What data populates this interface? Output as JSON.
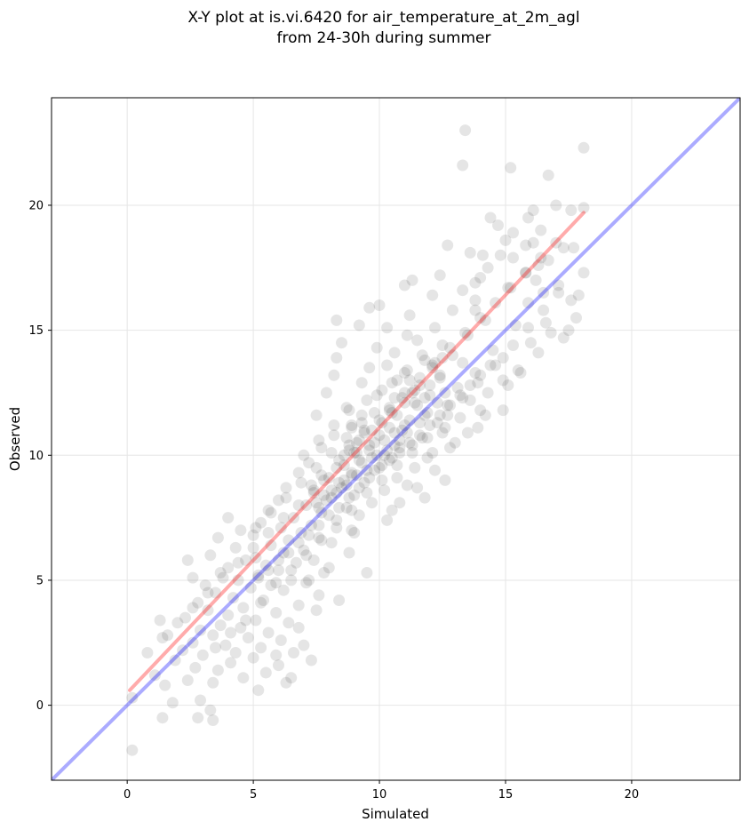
{
  "chart_data": {
    "type": "scatter",
    "title_line1": "X-Y plot at is.vi.6420 for air_temperature_at_2m_agl",
    "title_line2": "from 24-30h during summer",
    "xlabel": "Simulated",
    "ylabel": "Observed",
    "xlim": [
      -3.0,
      24.3
    ],
    "ylim": [
      -3.0,
      24.3
    ],
    "xticks": [
      0,
      5,
      10,
      15,
      20
    ],
    "yticks": [
      0,
      5,
      10,
      15,
      20
    ],
    "grid": true,
    "point_color": "#000000",
    "point_alpha": 0.1,
    "reference_line": {
      "name": "1:1",
      "color": "#0000ff",
      "x": [
        -3.0,
        24.3
      ],
      "y": [
        -3.0,
        24.3
      ]
    },
    "fit_line": {
      "color": "#ff0000",
      "x": [
        0.1,
        18.1
      ],
      "y": [
        0.6,
        19.7
      ]
    },
    "points": [
      [
        13.4,
        23.0
      ],
      [
        18.1,
        22.3
      ],
      [
        13.3,
        21.6
      ],
      [
        15.2,
        21.5
      ],
      [
        16.7,
        21.2
      ],
      [
        17.0,
        20.0
      ],
      [
        18.1,
        19.9
      ],
      [
        17.6,
        19.8
      ],
      [
        16.1,
        19.8
      ],
      [
        14.4,
        19.5
      ],
      [
        15.9,
        19.5
      ],
      [
        14.7,
        19.2
      ],
      [
        16.4,
        19.0
      ],
      [
        15.3,
        18.9
      ],
      [
        15.0,
        18.6
      ],
      [
        16.1,
        18.5
      ],
      [
        15.8,
        18.4
      ],
      [
        17.3,
        18.3
      ],
      [
        12.7,
        18.4
      ],
      [
        14.1,
        18.0
      ],
      [
        14.8,
        18.0
      ],
      [
        13.6,
        18.1
      ],
      [
        17.7,
        18.3
      ],
      [
        15.3,
        17.9
      ],
      [
        16.7,
        17.8
      ],
      [
        16.3,
        17.6
      ],
      [
        14.3,
        17.5
      ],
      [
        15.8,
        17.3
      ],
      [
        18.1,
        17.3
      ],
      [
        14.0,
        17.1
      ],
      [
        12.4,
        17.2
      ],
      [
        11.3,
        17.0
      ],
      [
        16.2,
        17.0
      ],
      [
        17.1,
        16.8
      ],
      [
        13.8,
        16.9
      ],
      [
        15.1,
        16.7
      ],
      [
        16.5,
        16.5
      ],
      [
        11.0,
        16.8
      ],
      [
        13.3,
        16.6
      ],
      [
        12.1,
        16.4
      ],
      [
        13.8,
        16.2
      ],
      [
        15.9,
        16.1
      ],
      [
        17.6,
        16.2
      ],
      [
        10.0,
        16.0
      ],
      [
        9.6,
        15.9
      ],
      [
        12.9,
        15.8
      ],
      [
        13.8,
        15.8
      ],
      [
        11.2,
        15.6
      ],
      [
        17.8,
        15.5
      ],
      [
        14.2,
        15.4
      ],
      [
        8.3,
        15.4
      ],
      [
        16.6,
        15.3
      ],
      [
        9.2,
        15.2
      ],
      [
        15.4,
        15.2
      ],
      [
        10.3,
        15.1
      ],
      [
        12.2,
        15.1
      ],
      [
        11.1,
        14.8
      ],
      [
        13.5,
        14.8
      ],
      [
        17.3,
        14.7
      ],
      [
        8.5,
        14.5
      ],
      [
        16.0,
        14.5
      ],
      [
        11.5,
        14.6
      ],
      [
        12.5,
        14.4
      ],
      [
        9.9,
        14.3
      ],
      [
        14.5,
        14.2
      ],
      [
        10.6,
        14.1
      ],
      [
        12.9,
        14.0
      ],
      [
        8.3,
        13.9
      ],
      [
        14.9,
        13.9
      ],
      [
        11.8,
        13.8
      ],
      [
        13.3,
        13.7
      ],
      [
        10.3,
        13.6
      ],
      [
        12.1,
        13.6
      ],
      [
        9.6,
        13.5
      ],
      [
        15.5,
        13.4
      ],
      [
        11.0,
        13.3
      ],
      [
        13.8,
        13.3
      ],
      [
        8.2,
        13.2
      ],
      [
        12.4,
        13.1
      ],
      [
        10.7,
        13.0
      ],
      [
        14.9,
        13.0
      ],
      [
        9.3,
        12.9
      ],
      [
        11.6,
        12.8
      ],
      [
        13.1,
        12.7
      ],
      [
        10.1,
        12.6
      ],
      [
        7.9,
        12.5
      ],
      [
        14.3,
        12.5
      ],
      [
        12.0,
        12.4
      ],
      [
        10.9,
        12.3
      ],
      [
        9.5,
        12.2
      ],
      [
        13.6,
        12.2
      ],
      [
        11.4,
        12.1
      ],
      [
        12.7,
        12.0
      ],
      [
        8.7,
        11.9
      ],
      [
        10.4,
        11.8
      ],
      [
        14.0,
        11.8
      ],
      [
        9.8,
        11.7
      ],
      [
        11.8,
        11.6
      ],
      [
        7.5,
        11.6
      ],
      [
        13.2,
        11.5
      ],
      [
        10.0,
        11.4
      ],
      [
        12.3,
        11.3
      ],
      [
        8.9,
        11.2
      ],
      [
        11.0,
        11.2
      ],
      [
        13.9,
        11.1
      ],
      [
        9.4,
        11.0
      ],
      [
        10.6,
        10.9
      ],
      [
        12.5,
        10.9
      ],
      [
        8.2,
        10.8
      ],
      [
        11.7,
        10.7
      ],
      [
        10.2,
        10.6
      ],
      [
        9.1,
        10.5
      ],
      [
        13.0,
        10.5
      ],
      [
        11.3,
        10.4
      ],
      [
        7.7,
        10.3
      ],
      [
        10.8,
        10.3
      ],
      [
        9.6,
        10.2
      ],
      [
        12.1,
        10.1
      ],
      [
        8.6,
        10.0
      ],
      [
        10.5,
        9.9
      ],
      [
        11.9,
        9.9
      ],
      [
        9.2,
        9.8
      ],
      [
        7.2,
        9.7
      ],
      [
        10.1,
        9.6
      ],
      [
        8.3,
        9.5
      ],
      [
        11.4,
        9.5
      ],
      [
        9.8,
        9.4
      ],
      [
        6.8,
        9.3
      ],
      [
        8.9,
        9.2
      ],
      [
        10.7,
        9.1
      ],
      [
        12.6,
        9.0
      ],
      [
        7.8,
        9.0
      ],
      [
        9.4,
        8.9
      ],
      [
        11.1,
        8.8
      ],
      [
        8.5,
        8.7
      ],
      [
        6.3,
        8.7
      ],
      [
        10.2,
        8.6
      ],
      [
        7.4,
        8.5
      ],
      [
        9.0,
        8.4
      ],
      [
        11.8,
        8.3
      ],
      [
        8.1,
        8.3
      ],
      [
        6.0,
        8.2
      ],
      [
        9.7,
        8.1
      ],
      [
        7.1,
        8.0
      ],
      [
        8.7,
        7.9
      ],
      [
        10.5,
        7.8
      ],
      [
        5.6,
        7.8
      ],
      [
        7.7,
        7.7
      ],
      [
        9.2,
        7.6
      ],
      [
        6.6,
        7.5
      ],
      [
        8.3,
        7.4
      ],
      [
        4.0,
        7.5
      ],
      [
        5.3,
        7.3
      ],
      [
        7.3,
        7.2
      ],
      [
        6.1,
        7.1
      ],
      [
        8.9,
        7.0
      ],
      [
        4.5,
        7.0
      ],
      [
        6.9,
        6.9
      ],
      [
        5.0,
        6.8
      ],
      [
        7.6,
        6.7
      ],
      [
        3.6,
        6.7
      ],
      [
        6.4,
        6.6
      ],
      [
        8.1,
        6.5
      ],
      [
        5.7,
        6.4
      ],
      [
        4.3,
        6.3
      ],
      [
        7.0,
        6.2
      ],
      [
        6.2,
        6.1
      ],
      [
        3.3,
        6.0
      ],
      [
        5.1,
        5.9
      ],
      [
        7.4,
        5.8
      ],
      [
        4.7,
        5.8
      ],
      [
        6.7,
        5.7
      ],
      [
        2.4,
        5.8
      ],
      [
        5.5,
        5.6
      ],
      [
        4.0,
        5.5
      ],
      [
        6.0,
        5.4
      ],
      [
        7.8,
        5.3
      ],
      [
        3.7,
        5.3
      ],
      [
        5.2,
        5.2
      ],
      [
        2.6,
        5.1
      ],
      [
        6.5,
        5.0
      ],
      [
        4.4,
        5.0
      ],
      [
        7.1,
        4.9
      ],
      [
        3.1,
        4.8
      ],
      [
        5.7,
        4.8
      ],
      [
        4.9,
        4.7
      ],
      [
        6.2,
        4.6
      ],
      [
        3.5,
        4.5
      ],
      [
        7.6,
        4.4
      ],
      [
        4.2,
        4.3
      ],
      [
        5.4,
        4.2
      ],
      [
        2.8,
        4.1
      ],
      [
        6.8,
        4.0
      ],
      [
        4.6,
        3.9
      ],
      [
        3.2,
        3.8
      ],
      [
        5.9,
        3.7
      ],
      [
        4.0,
        3.6
      ],
      [
        2.3,
        3.5
      ],
      [
        5.1,
        3.4
      ],
      [
        6.4,
        3.3
      ],
      [
        3.7,
        3.2
      ],
      [
        1.3,
        3.4
      ],
      [
        4.5,
        3.1
      ],
      [
        2.9,
        3.0
      ],
      [
        5.6,
        2.9
      ],
      [
        3.4,
        2.8
      ],
      [
        1.6,
        2.8
      ],
      [
        4.8,
        2.7
      ],
      [
        6.1,
        2.6
      ],
      [
        2.6,
        2.5
      ],
      [
        3.9,
        2.4
      ],
      [
        5.3,
        2.3
      ],
      [
        2.2,
        2.2
      ],
      [
        4.3,
        2.1
      ],
      [
        6.6,
        2.1
      ],
      [
        3.0,
        2.0
      ],
      [
        5.0,
        1.9
      ],
      [
        1.9,
        1.8
      ],
      [
        4.1,
        1.7
      ],
      [
        6.0,
        1.6
      ],
      [
        2.7,
        1.5
      ],
      [
        3.6,
        1.4
      ],
      [
        5.5,
        1.3
      ],
      [
        1.1,
        1.2
      ],
      [
        4.6,
        1.1
      ],
      [
        2.4,
        1.0
      ],
      [
        3.4,
        0.9
      ],
      [
        6.3,
        0.9
      ],
      [
        1.5,
        0.8
      ],
      [
        5.2,
        0.6
      ],
      [
        0.2,
        0.3
      ],
      [
        2.9,
        0.2
      ],
      [
        1.8,
        0.1
      ],
      [
        3.3,
        -0.2
      ],
      [
        1.4,
        -0.5
      ],
      [
        2.8,
        -0.5
      ],
      [
        3.4,
        -0.6
      ],
      [
        0.2,
        -1.8
      ],
      [
        6.5,
        1.1
      ],
      [
        7.3,
        1.8
      ],
      [
        5.9,
        2.0
      ],
      [
        7.0,
        2.4
      ],
      [
        6.8,
        3.1
      ],
      [
        7.5,
        3.8
      ],
      [
        8.4,
        4.2
      ],
      [
        7.2,
        5.0
      ],
      [
        8.0,
        5.5
      ],
      [
        8.8,
        6.1
      ],
      [
        9.5,
        5.3
      ],
      [
        9.0,
        6.9
      ],
      [
        10.3,
        7.4
      ],
      [
        10.8,
        8.1
      ],
      [
        11.5,
        8.7
      ],
      [
        12.2,
        9.4
      ],
      [
        12.8,
        10.3
      ],
      [
        13.5,
        10.9
      ],
      [
        14.2,
        11.6
      ],
      [
        14.9,
        11.8
      ],
      [
        15.1,
        12.8
      ],
      [
        15.6,
        13.3
      ],
      [
        16.3,
        14.1
      ],
      [
        16.8,
        14.9
      ],
      [
        17.5,
        15.0
      ],
      [
        17.9,
        16.4
      ],
      [
        12.7,
        11.6
      ],
      [
        13.3,
        12.3
      ],
      [
        13.9,
        12.9
      ],
      [
        14.6,
        13.6
      ],
      [
        15.3,
        14.4
      ],
      [
        15.9,
        15.1
      ],
      [
        16.5,
        15.8
      ],
      [
        17.1,
        16.5
      ],
      [
        11.9,
        10.7
      ],
      [
        12.6,
        11.1
      ],
      [
        11.3,
        10.1
      ],
      [
        10.7,
        9.6
      ],
      [
        10.1,
        9.0
      ],
      [
        9.5,
        8.5
      ],
      [
        8.9,
        7.8
      ],
      [
        8.3,
        7.1
      ],
      [
        7.7,
        6.6
      ],
      [
        7.1,
        6.0
      ],
      [
        6.5,
        5.4
      ],
      [
        5.9,
        4.9
      ],
      [
        5.3,
        4.1
      ],
      [
        4.7,
        3.4
      ],
      [
        4.1,
        2.9
      ],
      [
        3.5,
        2.3
      ],
      [
        9.8,
        10.5
      ],
      [
        9.1,
        10.1
      ],
      [
        8.6,
        9.6
      ],
      [
        8.0,
        9.1
      ],
      [
        7.4,
        8.6
      ],
      [
        6.8,
        8.0
      ],
      [
        6.2,
        7.5
      ],
      [
        5.6,
        6.9
      ],
      [
        5.0,
        6.3
      ],
      [
        4.4,
        5.7
      ],
      [
        3.8,
        5.1
      ],
      [
        3.2,
        4.5
      ],
      [
        2.6,
        3.9
      ],
      [
        2.0,
        3.3
      ],
      [
        1.4,
        2.7
      ],
      [
        0.8,
        2.1
      ],
      [
        10.4,
        11.9
      ],
      [
        11.0,
        12.5
      ],
      [
        11.6,
        13.1
      ],
      [
        12.2,
        13.7
      ],
      [
        12.8,
        14.3
      ],
      [
        13.4,
        14.9
      ],
      [
        14.0,
        15.5
      ],
      [
        14.6,
        16.1
      ],
      [
        15.2,
        16.7
      ],
      [
        15.8,
        17.3
      ],
      [
        16.4,
        17.9
      ],
      [
        17.0,
        18.5
      ],
      [
        9.3,
        11.3
      ],
      [
        8.7,
        10.7
      ],
      [
        8.1,
        10.1
      ],
      [
        7.5,
        9.5
      ],
      [
        6.9,
        8.9
      ],
      [
        6.3,
        8.3
      ],
      [
        5.7,
        7.7
      ],
      [
        5.1,
        7.1
      ],
      [
        9.9,
        12.4
      ],
      [
        10.5,
        12.9
      ],
      [
        11.1,
        13.4
      ],
      [
        11.7,
        14.0
      ],
      [
        8.8,
        11.8
      ],
      [
        8.2,
        11.2
      ],
      [
        7.6,
        10.6
      ],
      [
        7.0,
        10.0
      ],
      [
        10.2,
        10.0
      ],
      [
        10.6,
        10.4
      ],
      [
        9.7,
        9.9
      ],
      [
        9.3,
        9.7
      ],
      [
        10.9,
        11.0
      ],
      [
        11.2,
        11.4
      ],
      [
        8.9,
        9.3
      ],
      [
        8.6,
        9.0
      ],
      [
        10.0,
        10.8
      ],
      [
        10.4,
        11.1
      ],
      [
        9.6,
        10.4
      ],
      [
        9.0,
        10.1
      ],
      [
        11.5,
        12.0
      ],
      [
        11.8,
        12.3
      ],
      [
        8.4,
        8.9
      ],
      [
        8.1,
        8.6
      ],
      [
        10.7,
        11.6
      ],
      [
        11.3,
        12.5
      ],
      [
        9.4,
        10.9
      ],
      [
        8.8,
        10.4
      ],
      [
        12.0,
        12.8
      ],
      [
        12.4,
        13.2
      ],
      [
        7.8,
        8.4
      ],
      [
        7.5,
        8.1
      ],
      [
        10.3,
        10.2
      ],
      [
        9.9,
        10.0
      ],
      [
        10.8,
        10.6
      ],
      [
        11.1,
        10.9
      ],
      [
        9.5,
        9.4
      ],
      [
        9.1,
        9.2
      ],
      [
        11.6,
        11.3
      ],
      [
        11.9,
        11.7
      ],
      [
        8.7,
        8.8
      ],
      [
        8.3,
        8.5
      ],
      [
        12.3,
        12.1
      ],
      [
        12.6,
        12.5
      ],
      [
        7.9,
        8.2
      ],
      [
        7.6,
        7.9
      ],
      [
        10.1,
        11.3
      ],
      [
        10.5,
        11.7
      ],
      [
        9.7,
        11.0
      ],
      [
        9.2,
        10.6
      ],
      [
        11.0,
        12.1
      ],
      [
        11.4,
        12.6
      ],
      [
        8.8,
        10.2
      ],
      [
        8.4,
        9.8
      ],
      [
        10.6,
        12.3
      ],
      [
        11.2,
        13.0
      ],
      [
        9.3,
        11.6
      ],
      [
        8.9,
        11.1
      ],
      [
        12.1,
        13.5
      ],
      [
        12.5,
        13.9
      ],
      [
        7.7,
        9.2
      ],
      [
        7.3,
        8.8
      ],
      [
        10.0,
        9.5
      ],
      [
        10.4,
        9.8
      ],
      [
        9.6,
        9.1
      ],
      [
        9.2,
        8.7
      ],
      [
        10.8,
        10.1
      ],
      [
        11.2,
        10.5
      ],
      [
        8.8,
        8.3
      ],
      [
        8.4,
        7.9
      ],
      [
        11.6,
        10.8
      ],
      [
        12.0,
        11.2
      ],
      [
        8.0,
        7.6
      ],
      [
        7.6,
        7.2
      ],
      [
        12.4,
        11.6
      ],
      [
        12.8,
        12.0
      ],
      [
        7.2,
        6.8
      ],
      [
        6.8,
        6.5
      ],
      [
        13.2,
        12.4
      ],
      [
        13.6,
        12.8
      ],
      [
        6.4,
        6.1
      ],
      [
        6.0,
        5.8
      ],
      [
        14.0,
        13.2
      ],
      [
        14.4,
        13.6
      ],
      [
        5.6,
        5.4
      ],
      [
        5.2,
        5.1
      ]
    ]
  }
}
